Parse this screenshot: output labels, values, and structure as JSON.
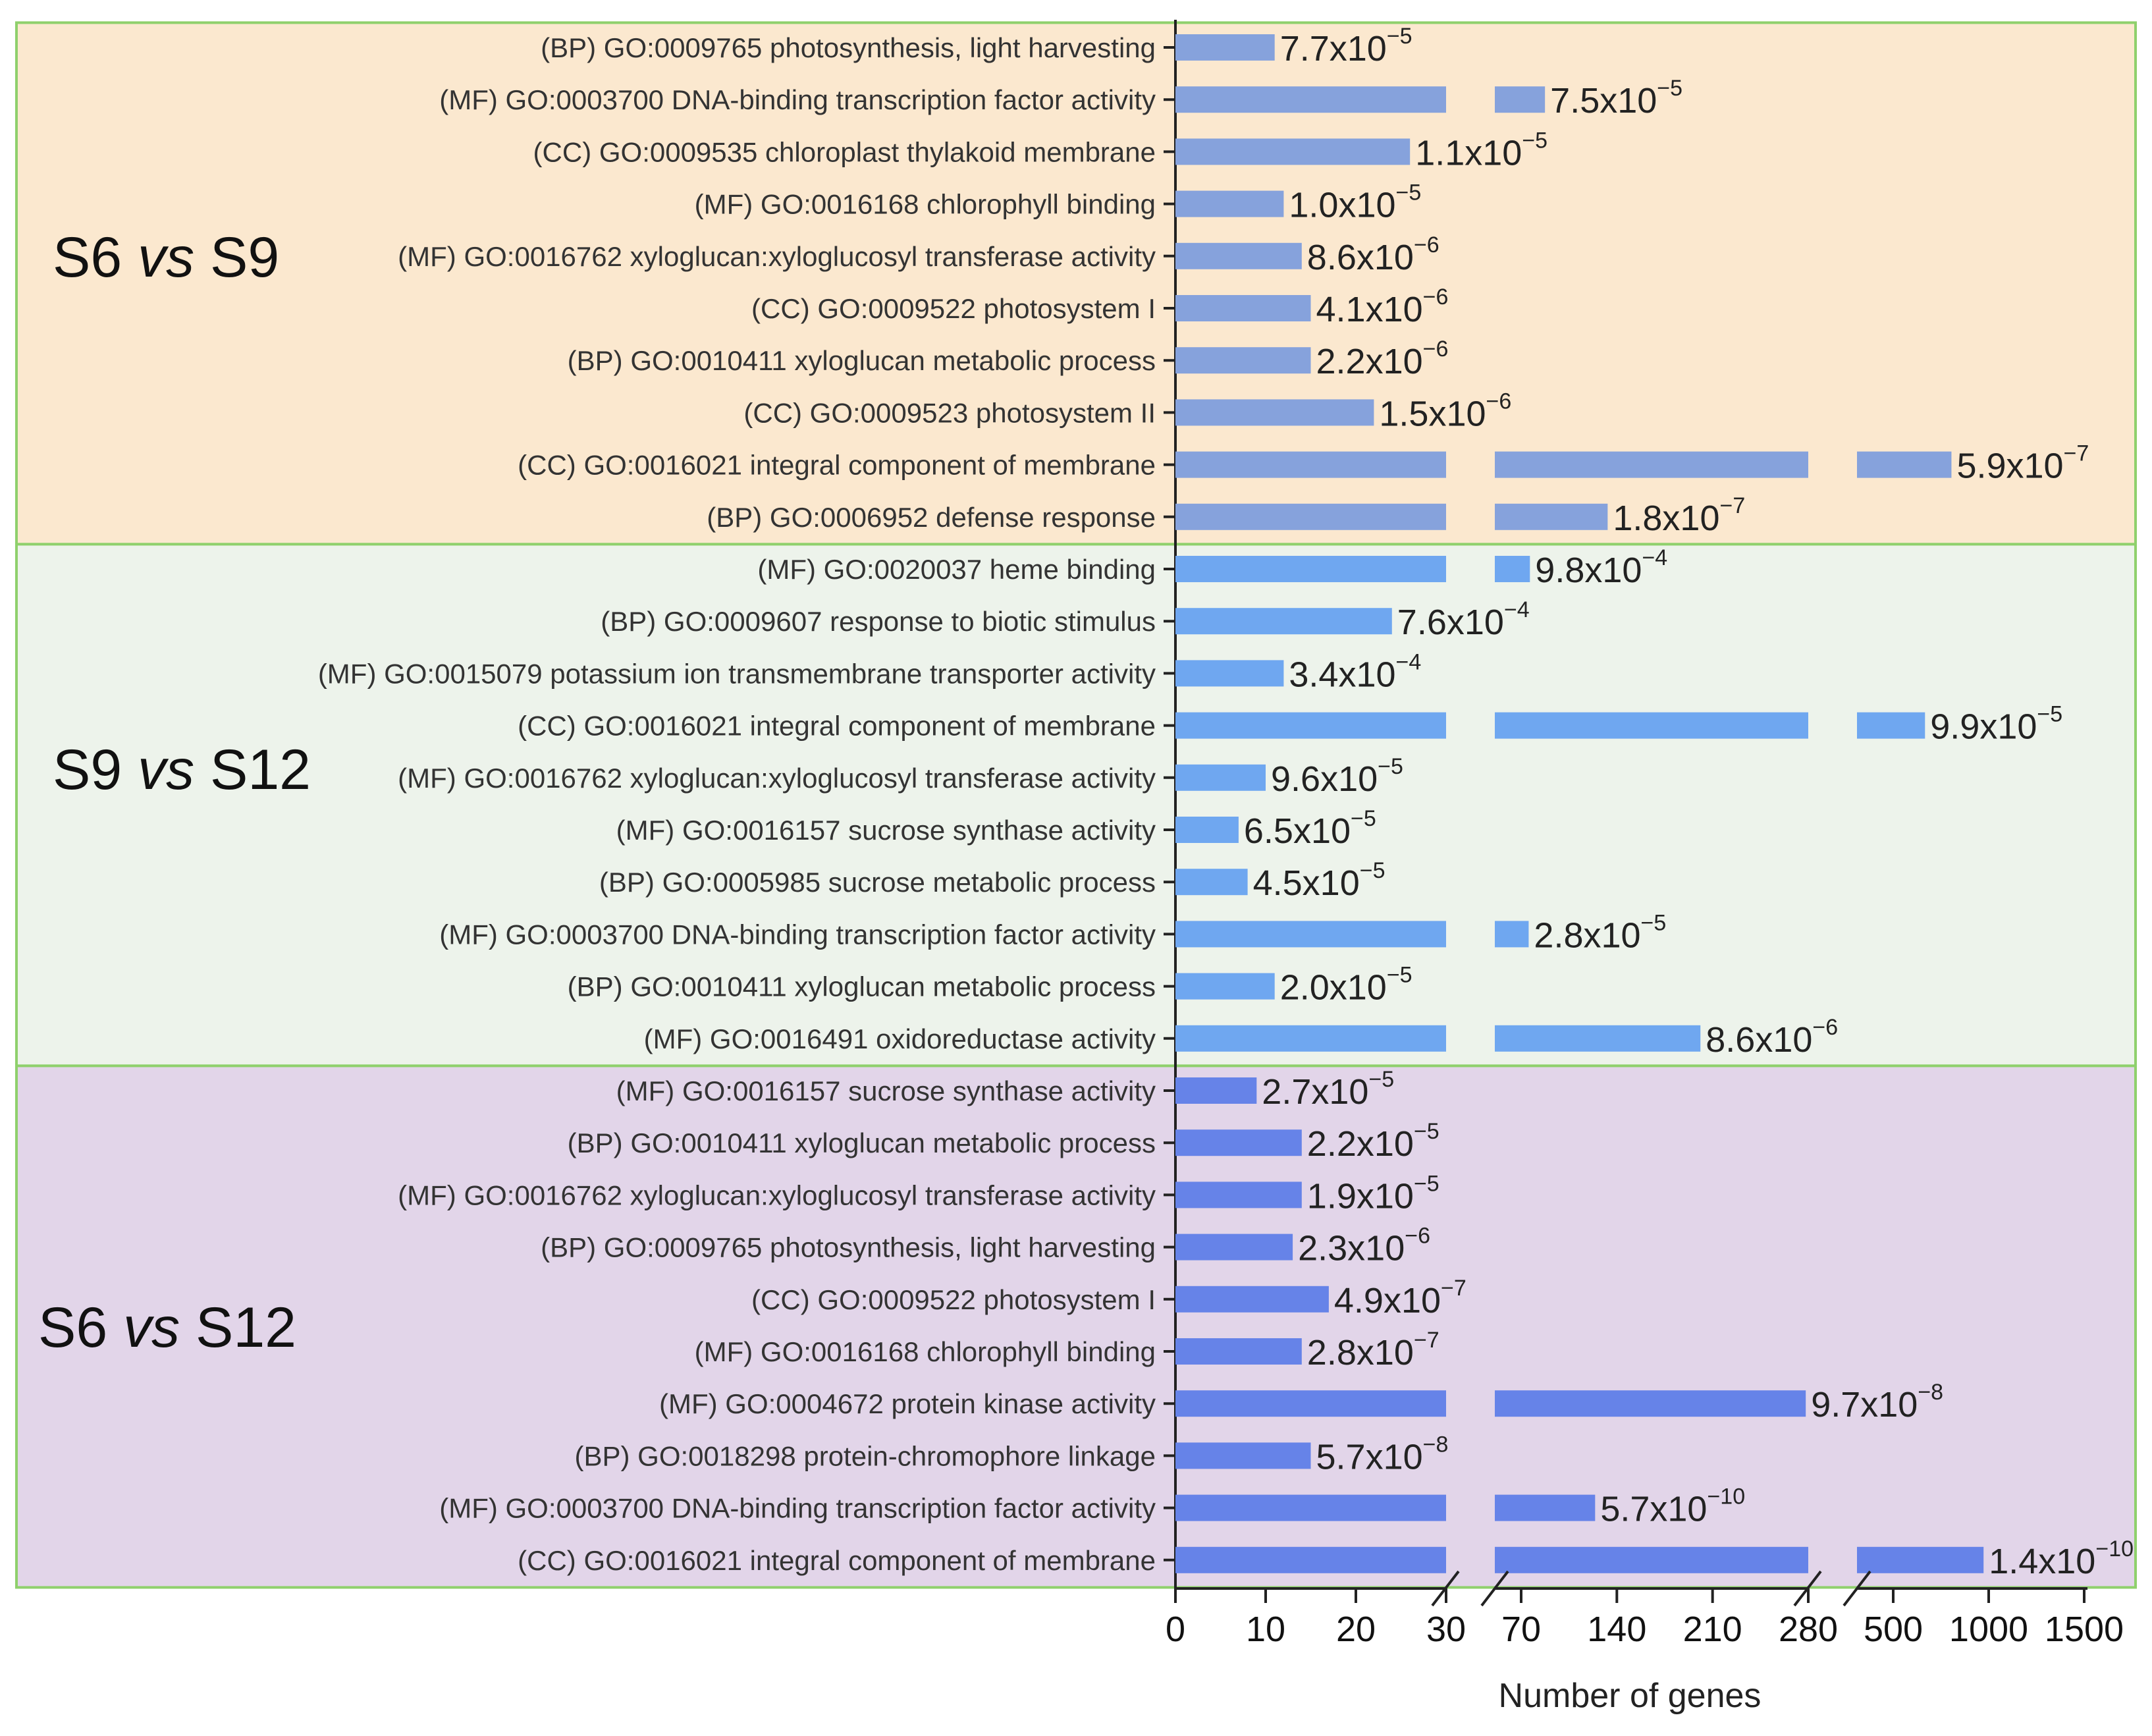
{
  "chart_data": {
    "type": "bar",
    "orientation": "horizontal",
    "xlabel": "Number of genes",
    "x_axis": {
      "broken": true,
      "segments": [
        {
          "ticks": [
            0,
            10,
            20,
            30
          ]
        },
        {
          "ticks": [
            70,
            140,
            210,
            280
          ]
        },
        {
          "ticks": [
            500,
            1000,
            1500
          ]
        }
      ],
      "tick_labels": [
        "0",
        "10",
        "20",
        "30",
        "70",
        "140",
        "210",
        "280",
        "500",
        "1000",
        "1500"
      ]
    },
    "groups": [
      {
        "name": "S6 vs S9",
        "name_parts": [
          "S6",
          "vs",
          "S9"
        ],
        "background": "#fbe8cf",
        "bar_color": "#86a2dc",
        "terms": [
          {
            "label": "(BP) GO:0009765 photosynthesis, light harvesting",
            "genes": 11,
            "pvalue": {
              "mant": "7.7",
              "exp": "-5"
            }
          },
          {
            "label": "(MF) GO:0003700 DNA-binding transcription factor activity",
            "genes": 70,
            "pvalue": {
              "mant": "7.5",
              "exp": "-5"
            }
          },
          {
            "label": "(CC) GO:0009535 chloroplast thylakoid membrane",
            "genes": 26,
            "pvalue": {
              "mant": "1.1",
              "exp": "-5"
            }
          },
          {
            "label": "(MF) GO:0016168 chlorophyll binding",
            "genes": 12,
            "pvalue": {
              "mant": "1.0",
              "exp": "-5"
            }
          },
          {
            "label": "(MF) GO:0016762 xyloglucan:xyloglucosyl transferase activity",
            "genes": 14,
            "pvalue": {
              "mant": "8.6",
              "exp": "-6"
            }
          },
          {
            "label": "(CC) GO:0009522 photosystem I",
            "genes": 15,
            "pvalue": {
              "mant": "4.1",
              "exp": "-6"
            }
          },
          {
            "label": "(BP) GO:0010411 xyloglucan metabolic process",
            "genes": 15,
            "pvalue": {
              "mant": "2.2",
              "exp": "-6"
            }
          },
          {
            "label": "(CC) GO:0009523 photosystem II",
            "genes": 22,
            "pvalue": {
              "mant": "1.5",
              "exp": "-6"
            }
          },
          {
            "label": "(CC) GO:0016021 integral component of membrane",
            "genes": 780,
            "pvalue": {
              "mant": "5.9",
              "exp": "-7"
            }
          },
          {
            "label": "(BP) GO:0006952 defense response",
            "genes": 120,
            "pvalue": {
              "mant": "1.8",
              "exp": "-7"
            }
          }
        ]
      },
      {
        "name": "S9 vs S12",
        "name_parts": [
          "S9",
          "vs",
          "S12"
        ],
        "background": "#edf3eb",
        "bar_color": "#6fa7f0",
        "terms": [
          {
            "label": "(MF) GO:0020037 heme binding",
            "genes": 58,
            "pvalue": {
              "mant": "9.8",
              "exp": "-4"
            }
          },
          {
            "label": "(BP) GO:0009607 response to biotic stimulus",
            "genes": 24,
            "pvalue": {
              "mant": "7.6",
              "exp": "-4"
            }
          },
          {
            "label": "(MF) GO:0015079 potassium ion transmembrane transporter activity",
            "genes": 12,
            "pvalue": {
              "mant": "3.4",
              "exp": "-4"
            }
          },
          {
            "label": "(CC) GO:0016021 integral component of membrane",
            "genes": 640,
            "pvalue": {
              "mant": "9.9",
              "exp": "-5"
            }
          },
          {
            "label": "(MF) GO:0016762 xyloglucan:xyloglucosyl transferase activity",
            "genes": 10,
            "pvalue": {
              "mant": "9.6",
              "exp": "-5"
            }
          },
          {
            "label": "(MF) GO:0016157 sucrose synthase activity",
            "genes": 7,
            "pvalue": {
              "mant": "6.5",
              "exp": "-5"
            }
          },
          {
            "label": "(BP) GO:0005985 sucrose metabolic process",
            "genes": 8,
            "pvalue": {
              "mant": "4.5",
              "exp": "-5"
            }
          },
          {
            "label": "(MF) GO:0003700 DNA-binding transcription factor activity",
            "genes": 57,
            "pvalue": {
              "mant": "2.8",
              "exp": "-5"
            }
          },
          {
            "label": "(BP) GO:0010411 xyloglucan metabolic process",
            "genes": 11,
            "pvalue": {
              "mant": "2.0",
              "exp": "-5"
            }
          },
          {
            "label": "(MF) GO:0016491 oxidoreductase activity",
            "genes": 194,
            "pvalue": {
              "mant": "8.6",
              "exp": "-6"
            }
          }
        ]
      },
      {
        "name": "S6 vs S12",
        "name_parts": [
          "S6",
          "vs",
          "S12"
        ],
        "background": "#e2d5e9",
        "bar_color": "#6683e8",
        "terms": [
          {
            "label": "(MF) GO:0016157 sucrose synthase activity",
            "genes": 9,
            "pvalue": {
              "mant": "2.7",
              "exp": "-5"
            }
          },
          {
            "label": "(BP) GO:0010411 xyloglucan metabolic process",
            "genes": 14,
            "pvalue": {
              "mant": "2.2",
              "exp": "-5"
            }
          },
          {
            "label": "(MF) GO:0016762 xyloglucan:xyloglucosyl transferase activity",
            "genes": 14,
            "pvalue": {
              "mant": "1.9",
              "exp": "-5"
            }
          },
          {
            "label": "(BP) GO:0009765 photosynthesis, light harvesting",
            "genes": 13,
            "pvalue": {
              "mant": "2.3",
              "exp": "-6"
            }
          },
          {
            "label": "(CC) GO:0009522 photosystem I",
            "genes": 17,
            "pvalue": {
              "mant": "4.9",
              "exp": "-7"
            }
          },
          {
            "label": "(MF) GO:0016168 chlorophyll binding",
            "genes": 14,
            "pvalue": {
              "mant": "2.8",
              "exp": "-7"
            }
          },
          {
            "label": "(MF) GO:0004672 protein kinase activity",
            "genes": 278,
            "pvalue": {
              "mant": "9.7",
              "exp": "-8"
            }
          },
          {
            "label": "(BP) GO:0018298 protein-chromophore linkage",
            "genes": 15,
            "pvalue": {
              "mant": "5.7",
              "exp": "-8"
            }
          },
          {
            "label": "(MF) GO:0003700 DNA-binding transcription factor activity",
            "genes": 110,
            "pvalue": {
              "mant": "5.7",
              "exp": "-10"
            }
          },
          {
            "label": "(CC) GO:0016021 integral component of membrane",
            "genes": 950,
            "pvalue": {
              "mant": "1.4",
              "exp": "-10"
            }
          }
        ]
      }
    ],
    "multiplier_text": "x10",
    "minus_sign": "−"
  }
}
